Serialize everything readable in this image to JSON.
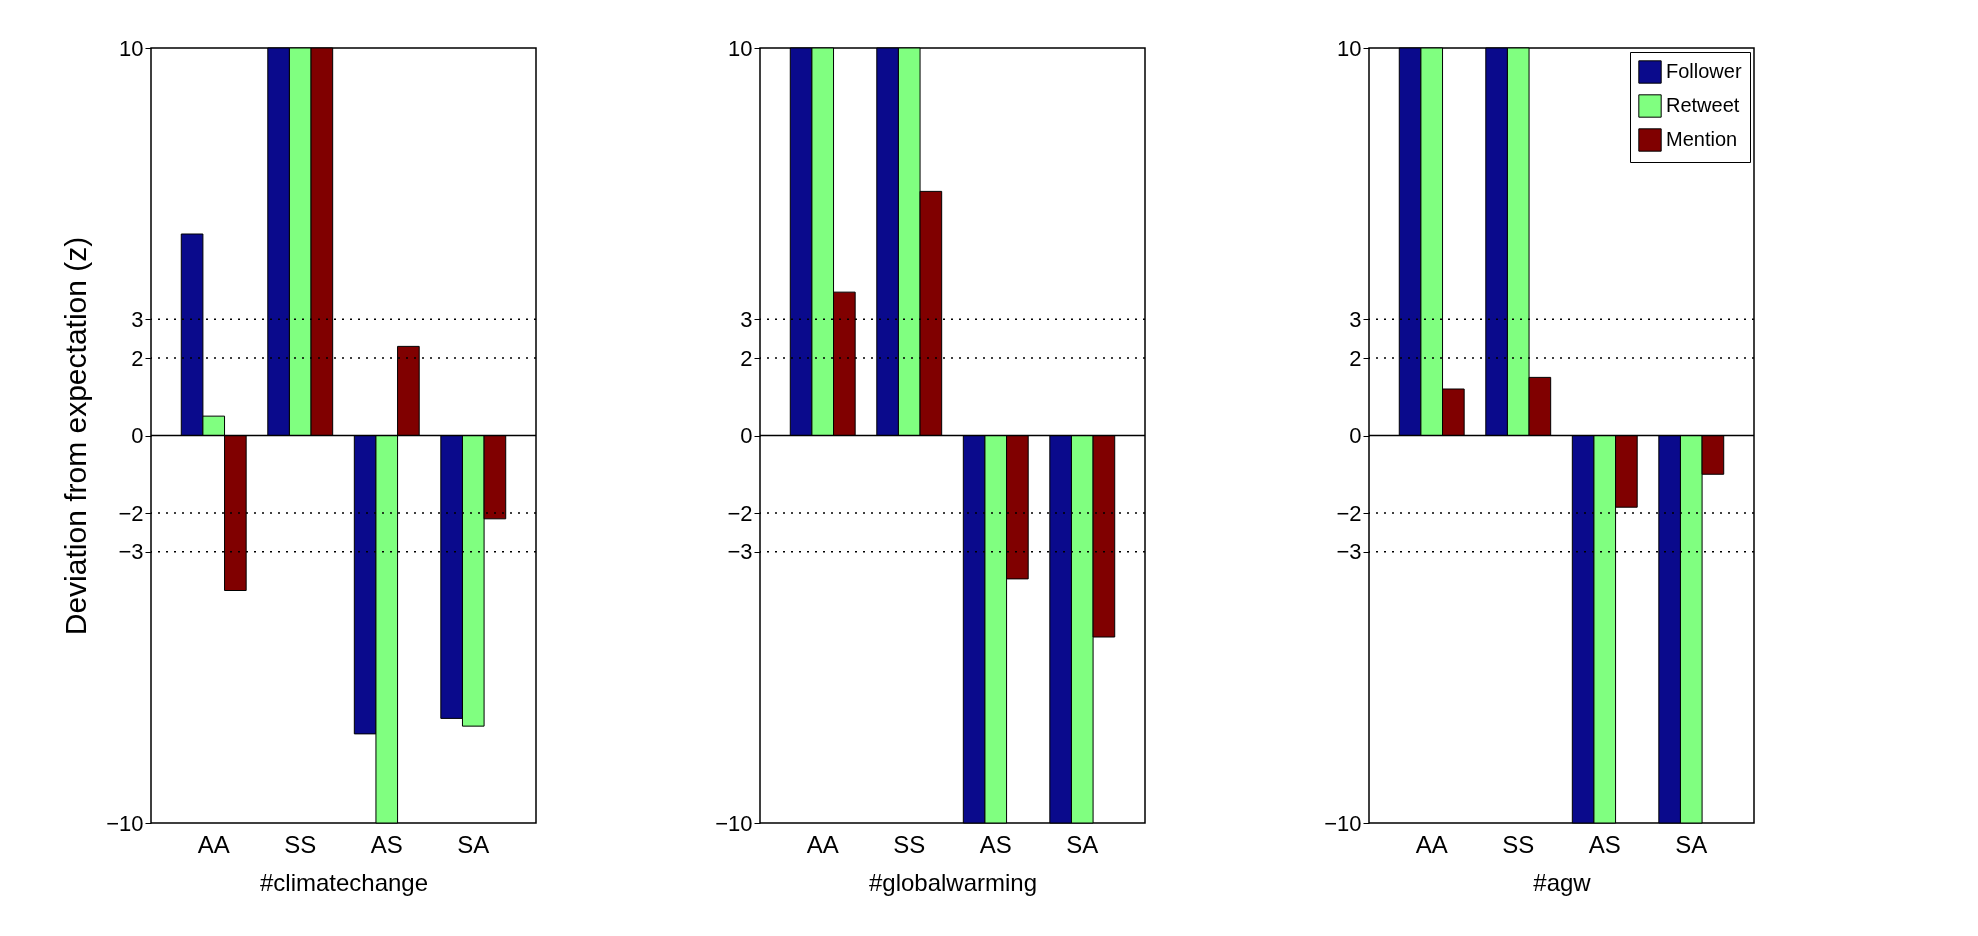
{
  "chart_data": [
    {
      "type": "bar",
      "xlabel": "#climatechange",
      "ylabel": "Deviation from expectation (z)",
      "categories": [
        "AA",
        "SS",
        "AS",
        "SA"
      ],
      "ylim": [
        -10,
        10
      ],
      "yticks": [
        -10,
        -3,
        -2,
        0,
        2,
        3,
        10
      ],
      "series": [
        {
          "color": "#0a0a8c",
          "values": [
            5.2,
            10,
            -7.7,
            -7.3
          ]
        },
        {
          "color": "#80ff80",
          "values": [
            0.5,
            10,
            -10,
            -7.5
          ]
        },
        {
          "color": "#800000",
          "values": [
            -4,
            10,
            2.3,
            -2.15
          ]
        }
      ],
      "ref_lines": [
        {
          "axis": "y",
          "value": 3,
          "line_style": "dotted"
        },
        {
          "axis": "y",
          "value": 2,
          "line_style": "dotted"
        },
        {
          "axis": "y",
          "value": 0,
          "line_style": "solid"
        },
        {
          "axis": "y",
          "value": -2,
          "line_style": "dotted"
        },
        {
          "axis": "y",
          "value": -3,
          "line_style": "dotted"
        }
      ]
    },
    {
      "type": "bar",
      "xlabel": "#globalwarming",
      "categories": [
        "AA",
        "SS",
        "AS",
        "SA"
      ],
      "ylim": [
        -10,
        10
      ],
      "yticks": [
        -10,
        -3,
        -2,
        0,
        2,
        3,
        10
      ],
      "series": [
        {
          "color": "#0a0a8c",
          "values": [
            10,
            10,
            -10,
            -10
          ]
        },
        {
          "color": "#80ff80",
          "values": [
            10,
            10,
            -10,
            -10
          ]
        },
        {
          "color": "#800000",
          "values": [
            3.7,
            6.3,
            -3.7,
            -5.2
          ]
        }
      ],
      "ref_lines": [
        {
          "axis": "y",
          "value": 3,
          "line_style": "dotted"
        },
        {
          "axis": "y",
          "value": 2,
          "line_style": "dotted"
        },
        {
          "axis": "y",
          "value": 0,
          "line_style": "solid"
        },
        {
          "axis": "y",
          "value": -2,
          "line_style": "dotted"
        },
        {
          "axis": "y",
          "value": -3,
          "line_style": "dotted"
        }
      ]
    },
    {
      "type": "bar",
      "xlabel": "#agw",
      "categories": [
        "AA",
        "SS",
        "AS",
        "SA"
      ],
      "ylim": [
        -10,
        10
      ],
      "yticks": [
        -10,
        -3,
        -2,
        0,
        2,
        3,
        10
      ],
      "legend": "top right",
      "series": [
        {
          "name": "Follower",
          "color": "#0a0a8c",
          "values": [
            10,
            10,
            -10,
            -10
          ]
        },
        {
          "name": "Retweet",
          "color": "#80ff80",
          "values": [
            10,
            10,
            -10,
            -10
          ]
        },
        {
          "name": "Mention",
          "color": "#800000",
          "values": [
            1.2,
            1.5,
            -1.85,
            -1
          ]
        }
      ],
      "ref_lines": [
        {
          "axis": "y",
          "value": 3,
          "line_style": "dotted"
        },
        {
          "axis": "y",
          "value": 2,
          "line_style": "dotted"
        },
        {
          "axis": "y",
          "value": 0,
          "line_style": "solid"
        },
        {
          "axis": "y",
          "value": -2,
          "line_style": "dotted"
        },
        {
          "axis": "y",
          "value": -3,
          "line_style": "dotted"
        }
      ]
    }
  ]
}
